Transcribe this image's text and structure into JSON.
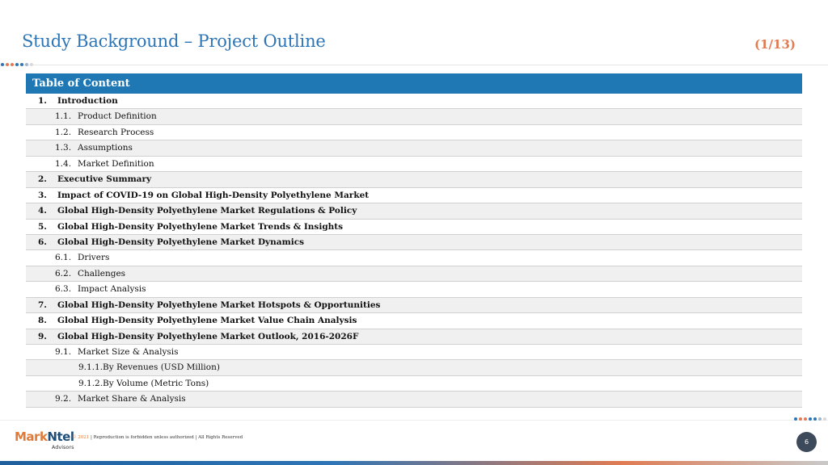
{
  "header": {
    "title": "Study Background – Project Outline",
    "page_indicator": "(1/13)"
  },
  "toc": {
    "heading": "Table of Content",
    "rows": [
      {
        "num": "1.",
        "text": "Introduction",
        "level": 1
      },
      {
        "num": "1.1.",
        "text": "Product Definition",
        "level": 2
      },
      {
        "num": "1.2.",
        "text": "Research Process",
        "level": 2
      },
      {
        "num": "1.3.",
        "text": "Assumptions",
        "level": 2
      },
      {
        "num": "1.4.",
        "text": "Market Definition",
        "level": 2
      },
      {
        "num": "2.",
        "text": "Executive Summary",
        "level": 1
      },
      {
        "num": "3.",
        "text": "Impact of COVID-19 on Global High-Density Polyethylene Market",
        "level": 1
      },
      {
        "num": "4.",
        "text": "Global  High-Density Polyethylene Market Regulations & Policy",
        "level": 1
      },
      {
        "num": "5.",
        "text": "Global  High-Density Polyethylene Market Trends & Insights",
        "level": 1
      },
      {
        "num": "6.",
        "text": "Global  High-Density Polyethylene Market Dynamics",
        "level": 1
      },
      {
        "num": "6.1.",
        "text": "Drivers",
        "level": 2
      },
      {
        "num": "6.2.",
        "text": "Challenges",
        "level": 2
      },
      {
        "num": "6.3.",
        "text": "Impact Analysis",
        "level": 2
      },
      {
        "num": "7.",
        "text": "Global High-Density Polyethylene Market Hotspots & Opportunities",
        "level": 1
      },
      {
        "num": "8.",
        "text": "Global High-Density Polyethylene Market Value Chain Analysis",
        "level": 1
      },
      {
        "num": "9.",
        "text": "Global High-Density Polyethylene Market Outlook, 2016-2026F",
        "level": 1
      },
      {
        "num": "9.1.",
        "text": "Market Size & Analysis",
        "level": 2
      },
      {
        "num": "9.1.1.",
        "text": "By Revenues (USD Million)",
        "level": 3
      },
      {
        "num": "9.1.2.",
        "text": "By Volume (Metric Tons)",
        "level": 3
      },
      {
        "num": "9.2.",
        "text": "Market Share & Analysis",
        "level": 2
      }
    ]
  },
  "footer": {
    "logo_part1": "Mark",
    "logo_part2": "Ntel",
    "logo_sub": "Advisors",
    "copyright_year": "© 2021",
    "copyright_text": " | Reproduction is forbidden unless authorized | All Rights Reserved",
    "slide_number": "6"
  },
  "colors": {
    "title": "#2e75b6",
    "accent": "#e07b53",
    "table_header": "#1f78b4",
    "dots": [
      "#2e75b6",
      "#e07b53",
      "#e07b53",
      "#2e75b6",
      "#2e75b6",
      "#9fb5cc",
      "#d9d9d9"
    ]
  }
}
